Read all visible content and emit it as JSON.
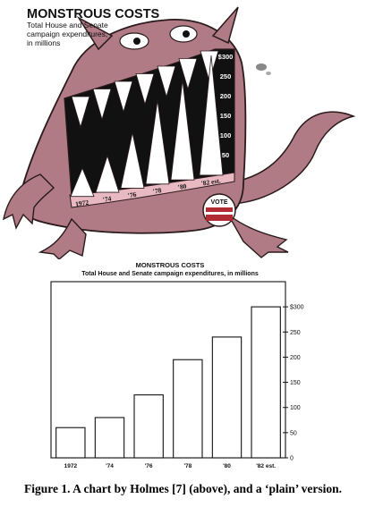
{
  "illustration": {
    "title": "MONSTROUS COSTS",
    "subtitle_lines": [
      "Total House and Senate",
      "campaign expenditures,",
      "in millions"
    ],
    "tooth_labels": [
      "1972",
      "'74",
      "'76",
      "'78",
      "'80",
      "'82 est."
    ],
    "scale_labels": [
      "$300",
      "250",
      "200",
      "150",
      "100",
      "50"
    ],
    "badge_text": "VOTE",
    "colors": {
      "monster_body": "#b07b84",
      "monster_outline": "#2a1a1c",
      "mouth": "#111111",
      "teeth": "#ffffff",
      "eye": "#ffffff"
    }
  },
  "chart_data": {
    "type": "bar",
    "title": "MONSTROUS COSTS",
    "subtitle": "Total House and Senate campaign expenditures, in millions",
    "categories": [
      "1972",
      "'74",
      "'76",
      "'78",
      "'80",
      "'82 est."
    ],
    "values": [
      60,
      80,
      125,
      195,
      240,
      300
    ],
    "ylim": [
      0,
      350
    ],
    "yticks": [
      0,
      50,
      100,
      150,
      200,
      250,
      300
    ],
    "ytick_labels": [
      "0",
      "50",
      "100",
      "150",
      "200",
      "250",
      "$300"
    ],
    "y_axis_side": "right",
    "grid": false
  },
  "caption": "Figure 1. A chart by Holmes [7] (above), and a ‘plain’ version."
}
